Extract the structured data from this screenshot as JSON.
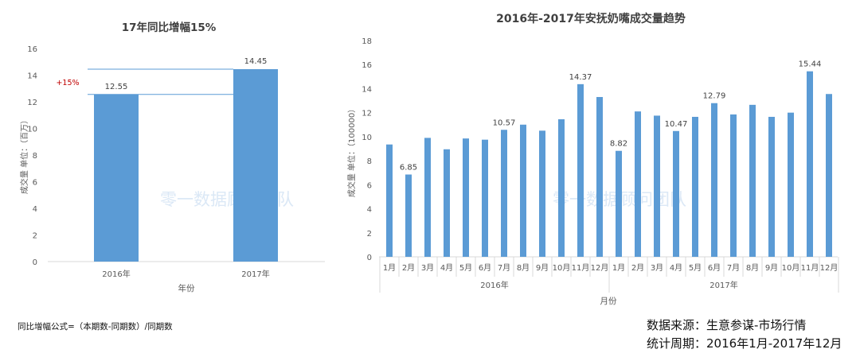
{
  "watermark": "零一数据顾问团队",
  "colors": {
    "bar": "#5b9bd5",
    "axis": "#d9d9d9",
    "label": "#595959",
    "growth": "#c00000",
    "watermark": "#dbe8f6"
  },
  "footnote": "同比增幅公式=（本期数-同期数）/同期数",
  "source": {
    "line1": "数据来源：生意参谋-市场行情",
    "line2": "统计周期：2016年1月-2017年12月"
  },
  "chart_data": [
    {
      "type": "bar",
      "title": "17年同比增幅15%",
      "categories": [
        "2016年",
        "2017年"
      ],
      "values": [
        12.55,
        14.45
      ],
      "value_labels": [
        "12.55",
        "14.45"
      ],
      "annotation": "+15%",
      "xlabel": "年份",
      "ylabel": "成交量 单位：（百万）",
      "ylim": [
        0,
        16
      ],
      "yticks": [
        "0",
        "2",
        "4",
        "6",
        "8",
        "10",
        "12",
        "14",
        "16"
      ]
    },
    {
      "type": "bar",
      "title": "2016年-2017年安抚奶嘴成交量趋势",
      "groups": [
        "2016年",
        "2017年"
      ],
      "months": [
        "1月",
        "2月",
        "3月",
        "4月",
        "5月",
        "6月",
        "7月",
        "8月",
        "9月",
        "10月",
        "11月",
        "12月"
      ],
      "series": [
        {
          "name": "2016年",
          "values": [
            9.35,
            6.85,
            9.9,
            8.95,
            9.85,
            9.75,
            10.57,
            11.0,
            10.5,
            11.45,
            14.37,
            13.3
          ]
        },
        {
          "name": "2017年",
          "values": [
            8.82,
            12.1,
            11.75,
            10.47,
            11.65,
            12.79,
            11.85,
            12.65,
            11.65,
            12.0,
            15.44,
            13.55
          ]
        }
      ],
      "value_labels": [
        {
          "series": 0,
          "index": 1,
          "text": "6.85"
        },
        {
          "series": 0,
          "index": 6,
          "text": "10.57"
        },
        {
          "series": 0,
          "index": 10,
          "text": "14.37"
        },
        {
          "series": 1,
          "index": 0,
          "text": "8.82"
        },
        {
          "series": 1,
          "index": 3,
          "text": "10.47"
        },
        {
          "series": 1,
          "index": 5,
          "text": "12.79"
        },
        {
          "series": 1,
          "index": 10,
          "text": "15.44"
        }
      ],
      "xlabel": "月份",
      "ylabel": "成交量 单位：（100000）",
      "ylim": [
        0,
        18
      ],
      "yticks": [
        "0",
        "2",
        "4",
        "6",
        "8",
        "10",
        "12",
        "14",
        "16",
        "18"
      ]
    }
  ]
}
